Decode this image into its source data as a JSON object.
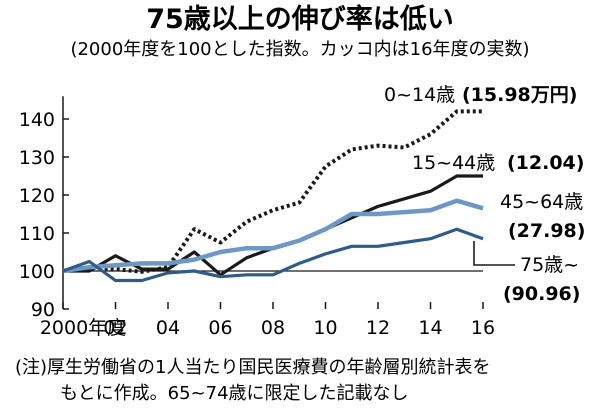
{
  "chart_data": {
    "type": "line",
    "title": "75歳以上の伸び率は低い",
    "subtitle": "(2000年度を100とした指数。カッコ内は16年度の実数)",
    "x": [
      2000,
      2001,
      2002,
      2003,
      2004,
      2005,
      2006,
      2007,
      2008,
      2009,
      2010,
      2011,
      2012,
      2013,
      2014,
      2015,
      2016
    ],
    "x_tick_labels": [
      "2000年度",
      "02",
      "04",
      "06",
      "08",
      "10",
      "12",
      "14",
      "16"
    ],
    "y_ticks": [
      90,
      100,
      110,
      120,
      130,
      140
    ],
    "ylim": [
      90,
      146
    ],
    "grid": false,
    "series": [
      {
        "name": "0~14歳",
        "value_2016": "(15.98万円)",
        "color": "#1a1a1a",
        "style": "dotted",
        "values": [
          100,
          101,
          100.5,
          99.8,
          101,
          111,
          107.5,
          113,
          116,
          118,
          127.5,
          132,
          133,
          132.5,
          136,
          142,
          142
        ]
      },
      {
        "name": "15~44歳",
        "value_2016": "(12.04)",
        "color": "#1a1a1a",
        "style": "solid",
        "values": [
          100,
          100,
          104,
          100.5,
          100.5,
          105,
          99,
          103.5,
          106,
          108,
          111,
          114,
          117,
          119,
          121,
          125,
          125
        ]
      },
      {
        "name": "45~64歳",
        "value_2016": "(27.98)",
        "color": "#6d98c6",
        "style": "solid",
        "values": [
          100,
          101,
          101.5,
          102,
          102,
          103,
          105,
          106,
          106,
          108,
          111,
          115,
          115,
          115.5,
          116,
          118.5,
          116.5
        ]
      },
      {
        "name": "75歳~",
        "value_2016": "(90.96)",
        "color": "#2f5b8b",
        "style": "solid",
        "values": [
          100,
          102.5,
          97.5,
          97.5,
          99.5,
          100,
          98.5,
          99,
          99,
          102,
          104.5,
          106.5,
          106.5,
          107.5,
          108.5,
          111,
          108.5
        ]
      }
    ],
    "note_line1": "(注)厚生労働省の1人当たり国民医療費の年齢層別統計表を",
    "note_line2": "もとに作成。65~74歳に限定した記載なし"
  }
}
